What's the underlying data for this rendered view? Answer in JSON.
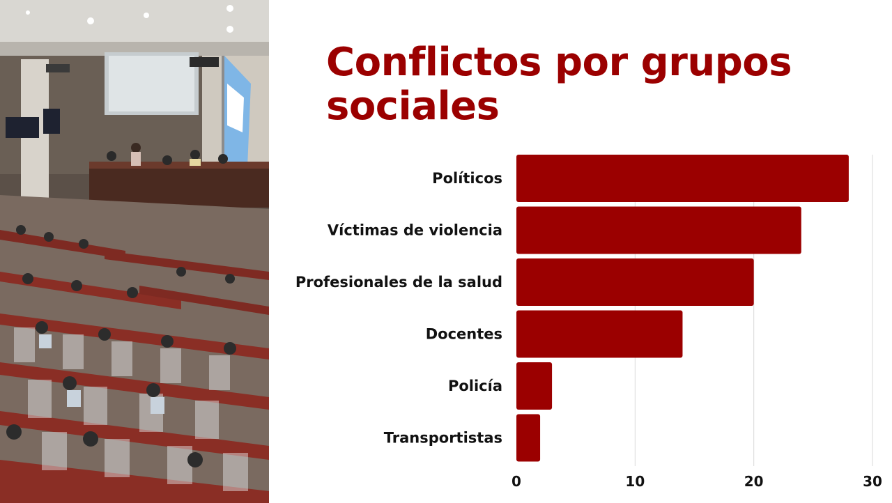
{
  "title": "Conflictos por grupos sociales",
  "photo": {
    "description_icon": "congress-chamber-photo"
  },
  "colors": {
    "accent": "#9b0000",
    "bar": "#9b0000",
    "grid": "#d9d9d9",
    "text": "#111111"
  },
  "chart_data": {
    "type": "bar",
    "orientation": "horizontal",
    "title": "Conflictos por grupos sociales",
    "categories": [
      "Políticos",
      "Víctimas de violencia",
      "Profesionales de la salud",
      "Docentes",
      "Policía",
      "Transportistas"
    ],
    "values": [
      28,
      24,
      20,
      14,
      3,
      2
    ],
    "xlim": [
      0,
      30
    ],
    "xticks": [
      0,
      10,
      20,
      30
    ],
    "grid": true,
    "legend": "none"
  }
}
